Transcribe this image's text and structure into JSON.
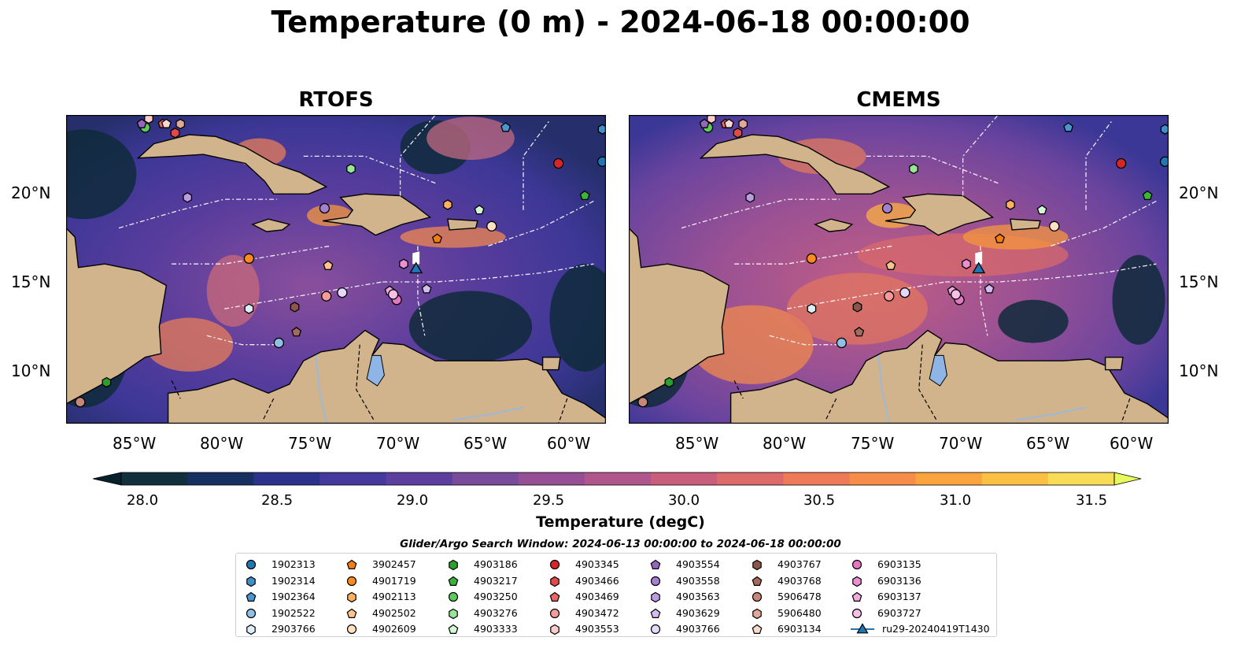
{
  "title": "Temperature (0 m) - 2024-06-18 00:00:00",
  "panels": [
    {
      "name": "RTOFS"
    },
    {
      "name": "CMEMS"
    }
  ],
  "axes": {
    "lat_ticks": [
      "20°N",
      "15°N",
      "10°N"
    ],
    "lon_ticks": [
      "85°W",
      "80°W",
      "75°W",
      "70°W",
      "65°W",
      "60°W"
    ],
    "lon_range": [
      -89,
      -58.3
    ],
    "lat_range": [
      7.1,
      24.3
    ]
  },
  "colorbar": {
    "label": "Temperature (degC)",
    "ticks": [
      "28.0",
      "28.5",
      "29.0",
      "29.5",
      "30.0",
      "30.5",
      "31.0",
      "31.5"
    ],
    "range": [
      28.0,
      31.5
    ],
    "colors": [
      "#11303d",
      "#173062",
      "#2c328c",
      "#45399e",
      "#5c3f9f",
      "#7a4b9b",
      "#964f95",
      "#b0568c",
      "#c85e7c",
      "#dd6a6a",
      "#ef7a58",
      "#f88c49",
      "#fba43e",
      "#fbc042",
      "#f8db56"
    ],
    "extend_low": "#08202b",
    "extend_high": "#e8fa5b"
  },
  "search_window": "Glider/Argo Search Window: 2024-06-13 00:00:00 to 2024-06-18 00:00:00",
  "legend": {
    "items": [
      {
        "label": "1902313",
        "marker": "circle",
        "color": "#1f77b4"
      },
      {
        "label": "1902314",
        "marker": "hexagon",
        "color": "#3f8fc9"
      },
      {
        "label": "1902364",
        "marker": "pentagon",
        "color": "#4a96d2"
      },
      {
        "label": "1902522",
        "marker": "circle",
        "color": "#8fc1e6"
      },
      {
        "label": "2903766",
        "marker": "hexagon",
        "color": "#ddeefa"
      },
      {
        "label": "3902457",
        "marker": "pentagon",
        "color": "#f57f0e"
      },
      {
        "label": "4901719",
        "marker": "circle",
        "color": "#ff8c1a"
      },
      {
        "label": "4902113",
        "marker": "hexagon",
        "color": "#ffb061"
      },
      {
        "label": "4902502",
        "marker": "pentagon",
        "color": "#ffc48c"
      },
      {
        "label": "4902609",
        "marker": "circle",
        "color": "#ffe0c2"
      },
      {
        "label": "4903186",
        "marker": "hexagon",
        "color": "#2ca02c"
      },
      {
        "label": "4903217",
        "marker": "pentagon",
        "color": "#3cb43c"
      },
      {
        "label": "4903250",
        "marker": "circle",
        "color": "#5ccb5c"
      },
      {
        "label": "4903276",
        "marker": "hexagon",
        "color": "#98e598"
      },
      {
        "label": "4903333",
        "marker": "pentagon",
        "color": "#d4f7d4"
      },
      {
        "label": "4903345",
        "marker": "circle",
        "color": "#d62728"
      },
      {
        "label": "4903466",
        "marker": "hexagon",
        "color": "#e24a4a"
      },
      {
        "label": "4903469",
        "marker": "pentagon",
        "color": "#ec6666"
      },
      {
        "label": "4903472",
        "marker": "circle",
        "color": "#f79a9a"
      },
      {
        "label": "4903553",
        "marker": "hexagon",
        "color": "#fbcccc"
      },
      {
        "label": "4903554",
        "marker": "pentagon",
        "color": "#9467bd"
      },
      {
        "label": "4903558",
        "marker": "circle",
        "color": "#a57fd0"
      },
      {
        "label": "4903563",
        "marker": "hexagon",
        "color": "#bb9be2"
      },
      {
        "label": "4903629",
        "marker": "pentagon",
        "color": "#d2bcf0"
      },
      {
        "label": "4903766",
        "marker": "circle",
        "color": "#e6d8fa"
      },
      {
        "label": "4903767",
        "marker": "hexagon",
        "color": "#8c564b"
      },
      {
        "label": "4903768",
        "marker": "pentagon",
        "color": "#a56a5e"
      },
      {
        "label": "5906478",
        "marker": "circle",
        "color": "#c9877a"
      },
      {
        "label": "5906480",
        "marker": "hexagon",
        "color": "#e2a89c"
      },
      {
        "label": "6903134",
        "marker": "pentagon",
        "color": "#fbd9cf"
      },
      {
        "label": "6903135",
        "marker": "circle",
        "color": "#e377c2"
      },
      {
        "label": "6903136",
        "marker": "hexagon",
        "color": "#ec8fd2"
      },
      {
        "label": "6903137",
        "marker": "pentagon",
        "color": "#f2a9df"
      },
      {
        "label": "6903727",
        "marker": "circle",
        "color": "#f7bfe8"
      },
      {
        "label": "ru29-20240419T1430",
        "marker": "triangle-line",
        "color": "#1f77b4"
      }
    ]
  },
  "stations": [
    {
      "id": "1902313",
      "lon": -58.5,
      "lat": 21.7
    },
    {
      "id": "1902314",
      "lon": -58.5,
      "lat": 23.5
    },
    {
      "id": "1902364",
      "lon": -64.0,
      "lat": 23.6
    },
    {
      "id": "1902522",
      "lon": -76.9,
      "lat": 11.6
    },
    {
      "id": "2903766",
      "lon": -78.6,
      "lat": 13.5
    },
    {
      "id": "3902457",
      "lon": -67.9,
      "lat": 17.4
    },
    {
      "id": "4901719",
      "lon": -78.6,
      "lat": 16.3
    },
    {
      "id": "4902113",
      "lon": -67.3,
      "lat": 19.3
    },
    {
      "id": "4902502",
      "lon": -74.1,
      "lat": 15.9
    },
    {
      "id": "4902609",
      "lon": -64.8,
      "lat": 18.1
    },
    {
      "id": "4903186",
      "lon": -86.7,
      "lat": 9.4
    },
    {
      "id": "4903217",
      "lon": -59.5,
      "lat": 19.8
    },
    {
      "id": "4903250",
      "lon": -84.5,
      "lat": 23.6
    },
    {
      "id": "4903276",
      "lon": -72.8,
      "lat": 21.3
    },
    {
      "id": "4903333",
      "lon": -65.5,
      "lat": 19.0
    },
    {
      "id": "4903345",
      "lon": -61.0,
      "lat": 21.6
    },
    {
      "id": "4903466",
      "lon": -82.8,
      "lat": 23.3
    },
    {
      "id": "4903469",
      "lon": -83.5,
      "lat": 23.8
    },
    {
      "id": "4903472",
      "lon": -74.2,
      "lat": 14.2
    },
    {
      "id": "4903553",
      "lon": -84.3,
      "lat": 24.1
    },
    {
      "id": "4903554",
      "lon": -84.7,
      "lat": 23.8
    },
    {
      "id": "4903558",
      "lon": -74.3,
      "lat": 19.1
    },
    {
      "id": "4903563",
      "lon": -82.1,
      "lat": 19.7
    },
    {
      "id": "4903629",
      "lon": -68.5,
      "lat": 14.6
    },
    {
      "id": "4903766",
      "lon": -73.3,
      "lat": 14.4
    },
    {
      "id": "4903767",
      "lon": -76.0,
      "lat": 13.6
    },
    {
      "id": "4903768",
      "lon": -75.9,
      "lat": 12.2
    },
    {
      "id": "5906478",
      "lon": -88.2,
      "lat": 8.3
    },
    {
      "id": "5906480",
      "lon": -82.5,
      "lat": 23.8
    },
    {
      "id": "6903134",
      "lon": -83.3,
      "lat": 23.8
    },
    {
      "id": "6903135",
      "lon": -70.2,
      "lat": 14.0
    },
    {
      "id": "6903136",
      "lon": -69.8,
      "lat": 16.0
    },
    {
      "id": "6903137",
      "lon": -70.6,
      "lat": 14.5
    },
    {
      "id": "6903727",
      "lon": -70.4,
      "lat": 14.3
    }
  ],
  "glider": {
    "id": "ru29-20240419T1430",
    "lon": -69.1,
    "lat": 15.6
  }
}
